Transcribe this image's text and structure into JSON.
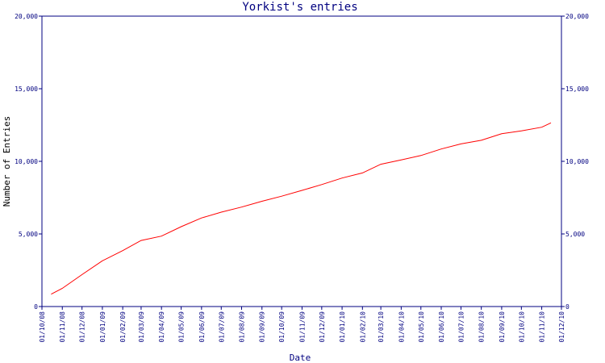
{
  "chart_data": {
    "type": "line",
    "title": "Yorkist's entries",
    "xlabel": "Date",
    "ylabel": "Number of Entries",
    "ylim": [
      0,
      20000
    ],
    "y_ticks": [
      "0",
      "5,000",
      "10,000",
      "15,000",
      "20,000"
    ],
    "x_ticks": [
      "01/10/08",
      "01/11/08",
      "01/12/08",
      "01/01/09",
      "01/02/09",
      "01/03/09",
      "01/04/09",
      "01/05/09",
      "01/06/09",
      "01/07/09",
      "01/08/09",
      "01/09/09",
      "01/10/09",
      "01/11/09",
      "01/12/09",
      "01/01/10",
      "01/02/10",
      "01/03/10",
      "01/04/10",
      "01/05/10",
      "01/06/10",
      "01/07/10",
      "01/08/10",
      "01/09/10",
      "01/10/10",
      "01/11/10",
      "01/12/10"
    ],
    "grid": false,
    "series": [
      {
        "color": "#ff0000",
        "x": [
          "2008-10-15",
          "2008-11-01",
          "2008-12-01",
          "2009-01-01",
          "2009-02-01",
          "2009-03-01",
          "2009-04-01",
          "2009-05-01",
          "2009-06-01",
          "2009-07-01",
          "2009-08-01",
          "2009-09-01",
          "2009-10-01",
          "2009-11-01",
          "2009-12-01",
          "2010-01-01",
          "2010-02-01",
          "2010-03-01",
          "2010-04-01",
          "2010-05-01",
          "2010-06-01",
          "2010-07-01",
          "2010-08-01",
          "2010-09-01",
          "2010-10-01",
          "2010-11-01",
          "2010-11-15"
        ],
        "values": [
          850,
          1250,
          2200,
          3150,
          3850,
          4550,
          4850,
          5500,
          6100,
          6500,
          6850,
          7250,
          7600,
          8000,
          8400,
          8850,
          9200,
          9800,
          10100,
          10400,
          10850,
          11200,
          11450,
          11900,
          12100,
          12350,
          12650
        ]
      }
    ],
    "colors": {
      "axis": "#000080",
      "line": "#ff0000"
    }
  }
}
